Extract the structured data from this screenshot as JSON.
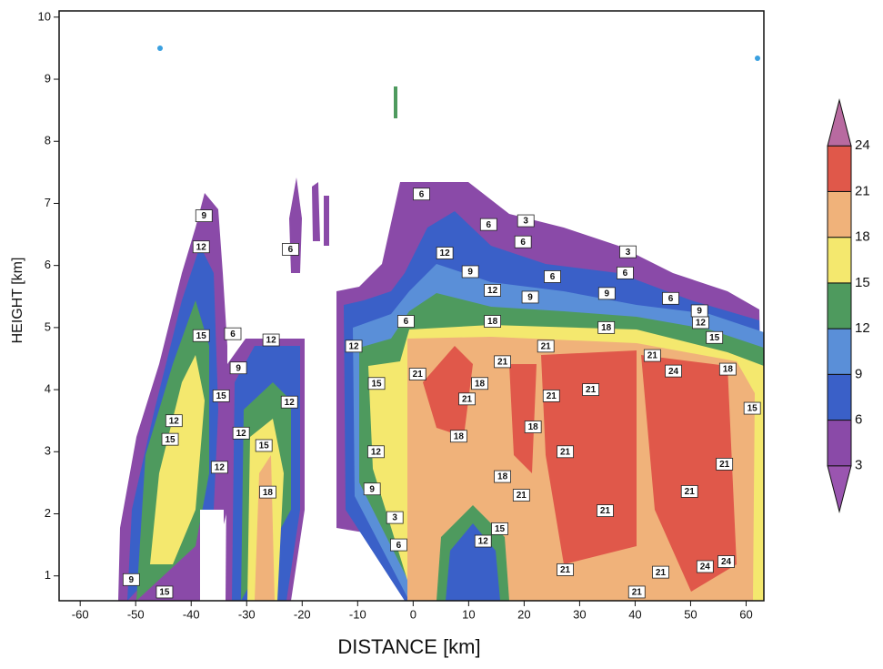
{
  "chart_data": {
    "type": "contour",
    "xlabel": "DISTANCE [km]",
    "ylabel": "HEIGHT [km]",
    "xlim": [
      -63.8,
      63.2
    ],
    "ylim": [
      0.6,
      10.1
    ],
    "xticks": [
      -60,
      -50,
      -40,
      -30,
      -20,
      -10,
      0,
      10,
      20,
      30,
      40,
      50,
      60
    ],
    "yticks": [
      1,
      2,
      3,
      4,
      5,
      6,
      7,
      8,
      9,
      10
    ],
    "colorbar": {
      "clim": [
        0,
        27
      ],
      "ticks": [
        3,
        6,
        9,
        12,
        15,
        18,
        21,
        24
      ],
      "colors": [
        "#9a55b0",
        "#8a4aa8",
        "#3a60c8",
        "#5a8fd8",
        "#4e9a5e",
        "#f4e86e",
        "#f0b27a",
        "#e0584a",
        "#b86aa0"
      ]
    },
    "contour_labels": {
      "x": [
        -37.7,
        -38.2,
        -38.2,
        -32.5,
        -25.6,
        -31.5,
        -34.6,
        -22.3,
        -43.1,
        -43.8,
        -31,
        -26.9,
        -34.9,
        -26.2,
        -44.8,
        -50.8,
        -22.1,
        -10.7,
        -6.6,
        -6.7,
        -7.4,
        -3.3,
        -2.6,
        -1.3,
        1.5,
        5.7,
        10.3,
        14.3,
        14.3,
        0.8,
        16.1,
        12,
        9.7,
        8.2,
        21.6,
        16.1,
        19.5,
        23.9,
        24.9,
        32,
        27.4,
        34.6,
        15.6,
        12.6,
        27.4,
        40.3,
        44.6,
        49.8,
        56.1,
        52.6,
        56.4,
        46.9,
        43.1,
        56.7,
        61.1,
        54.3,
        51.8,
        51.6,
        34.8,
        34.9,
        38.2,
        38.7,
        46.4,
        25.1,
        21.1,
        19.8,
        20.3,
        13.6
      ],
      "y": [
        6.8,
        6.3,
        4.87,
        4.9,
        4.8,
        4.35,
        3.9,
        3.8,
        3.5,
        3.2,
        3.3,
        3.1,
        2.75,
        2.35,
        0.74,
        0.94,
        6.26,
        4.7,
        4.1,
        3.0,
        2.4,
        1.94,
        1.5,
        5.1,
        7.15,
        6.2,
        5.9,
        5.6,
        5.1,
        4.25,
        4.45,
        4.1,
        3.85,
        3.25,
        3.4,
        2.6,
        2.3,
        4.7,
        3.9,
        4.0,
        3.0,
        2.05,
        1.76,
        1.56,
        1.1,
        0.74,
        1.06,
        2.36,
        2.8,
        1.15,
        1.23,
        4.3,
        4.55,
        4.33,
        3.7,
        4.84,
        5.08,
        5.27,
        5.0,
        5.55,
        5.88,
        6.22,
        5.47,
        5.82,
        5.49,
        6.38,
        6.72,
        6.66
      ],
      "values": [
        9,
        12,
        15,
        6,
        12,
        9,
        15,
        12,
        12,
        15,
        12,
        15,
        12,
        18,
        15,
        9,
        6,
        12,
        15,
        12,
        9,
        3,
        6,
        6,
        6,
        12,
        9,
        12,
        18,
        21,
        21,
        18,
        21,
        18,
        18,
        18,
        21,
        21,
        21,
        21,
        21,
        21,
        15,
        12,
        21,
        21,
        21,
        21,
        21,
        24,
        24,
        24,
        21,
        18,
        15,
        15,
        12,
        9,
        18,
        9,
        6,
        3,
        6,
        6,
        9,
        6,
        3,
        6
      ]
    }
  }
}
